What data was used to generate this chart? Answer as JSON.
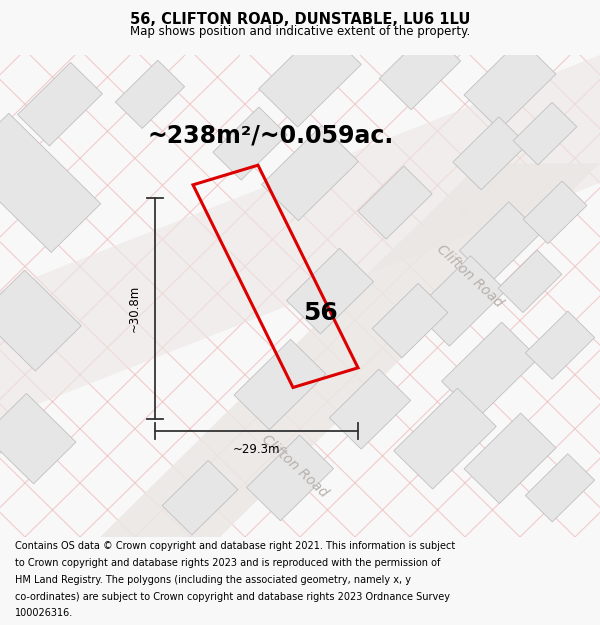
{
  "title": "56, CLIFTON ROAD, DUNSTABLE, LU6 1LU",
  "subtitle": "Map shows position and indicative extent of the property.",
  "area_text": "~238m²/~0.059ac.",
  "label_56": "56",
  "dim_width": "~29.3m",
  "dim_height": "~30.8m",
  "road_label_1": "Clifton Road",
  "road_label_2": "Clifton Road",
  "footer": "Contains OS data © Crown copyright and database right 2021. This information is subject to Crown copyright and database rights 2023 and is reproduced with the permission of HM Land Registry. The polygons (including the associated geometry, namely x, y co-ordinates) are subject to Crown copyright and database rights 2023 Ordnance Survey 100026316.",
  "bg_color": "#f8f8f8",
  "map_bg": "#f5f4f2",
  "plot_color": "#dd0000",
  "building_fill": "#e6e6e6",
  "building_stroke": "#c0c0c0",
  "hatch_color": "#f0b8b8",
  "road_strip_color": "#ebe7e4",
  "road_label_color": "#b8b0ac",
  "dim_color": "#333333",
  "title_fontsize": 10.5,
  "subtitle_fontsize": 8.5,
  "area_fontsize": 17,
  "label_fontsize": 18,
  "dim_fontsize": 8.5,
  "footer_fontsize": 7.0,
  "road_label_fontsize": 10
}
